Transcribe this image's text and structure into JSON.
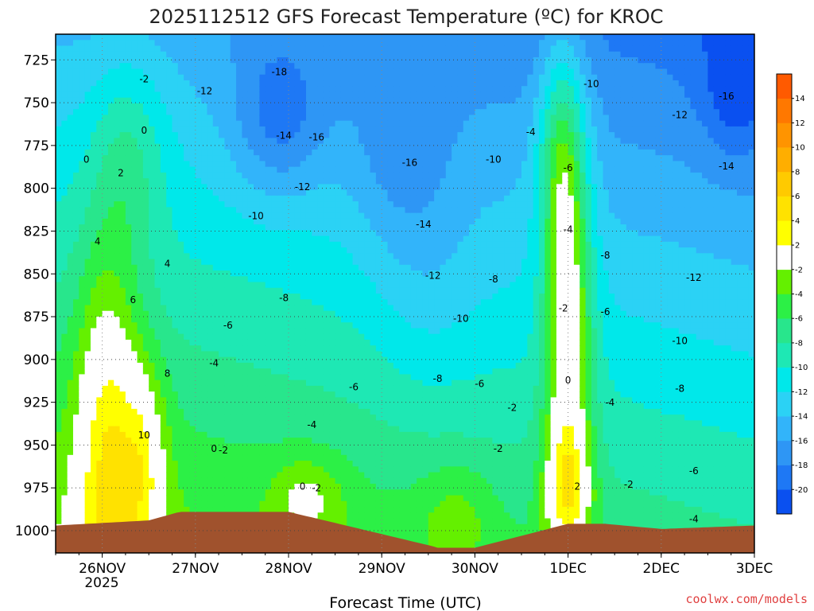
{
  "chart_data": {
    "type": "heatmap",
    "title": "2025112512 GFS Forecast Temperature (ºC) for KROC",
    "xlabel": "Forecast Time (UTC)",
    "ylabel": "",
    "x_ticks": [
      "26NOV",
      "27NOV",
      "28NOV",
      "29NOV",
      "30NOV",
      "1DEC",
      "2DEC",
      "3DEC"
    ],
    "x_tick_year": "2025",
    "xlim_days": [
      25.5,
      33.0
    ],
    "y_ticks": [
      725,
      750,
      775,
      800,
      825,
      850,
      875,
      900,
      925,
      950,
      975,
      1000
    ],
    "ylim_hpa": [
      1013,
      710
    ],
    "colorbar": {
      "levels": [
        -22,
        -20,
        -18,
        -16,
        -14,
        -12,
        -10,
        -8,
        -6,
        -4,
        -2,
        2,
        4,
        6,
        8,
        10,
        12,
        14,
        16
      ],
      "tick_labels": [
        "-20",
        "-18",
        "-16",
        "-14",
        "-12",
        "-10",
        "-8",
        "-6",
        "-4",
        "-2",
        "2",
        "4",
        "6",
        "8",
        "10",
        "12",
        "14"
      ],
      "colors": [
        "#0a50f0",
        "#1e78f5",
        "#2e96f5",
        "#32b4fa",
        "#2bd2f5",
        "#00e8ea",
        "#1ee8b4",
        "#28e68c",
        "#2cf046",
        "#64f000",
        "#ffffff",
        "#ffff00",
        "#ffe200",
        "#ffca00",
        "#ffae00",
        "#ff9400",
        "#ff7800",
        "#ff5a00"
      ]
    },
    "contour_labels": [
      {
        "t": 27.1,
        "p": 745,
        "text": "-12"
      },
      {
        "t": 27.9,
        "p": 734,
        "text": "-18"
      },
      {
        "t": 26.45,
        "p": 738,
        "text": "-2"
      },
      {
        "t": 26.45,
        "p": 768,
        "text": "0"
      },
      {
        "t": 25.83,
        "p": 785,
        "text": "0"
      },
      {
        "t": 26.2,
        "p": 793,
        "text": "2"
      },
      {
        "t": 25.95,
        "p": 833,
        "text": "4"
      },
      {
        "t": 26.7,
        "p": 846,
        "text": "4"
      },
      {
        "t": 26.33,
        "p": 867,
        "text": "6"
      },
      {
        "t": 26.7,
        "p": 910,
        "text": "8"
      },
      {
        "t": 26.45,
        "p": 946,
        "text": "10"
      },
      {
        "t": 27.95,
        "p": 771,
        "text": "-14"
      },
      {
        "t": 28.3,
        "p": 772,
        "text": "-16"
      },
      {
        "t": 29.3,
        "p": 787,
        "text": "-16"
      },
      {
        "t": 28.15,
        "p": 801,
        "text": "-12"
      },
      {
        "t": 27.65,
        "p": 818,
        "text": "-10"
      },
      {
        "t": 29.45,
        "p": 823,
        "text": "-14"
      },
      {
        "t": 29.55,
        "p": 853,
        "text": "-12"
      },
      {
        "t": 27.95,
        "p": 866,
        "text": "-8"
      },
      {
        "t": 27.35,
        "p": 882,
        "text": "-6"
      },
      {
        "t": 27.2,
        "p": 904,
        "text": "-4"
      },
      {
        "t": 28.7,
        "p": 918,
        "text": "-6"
      },
      {
        "t": 28.25,
        "p": 940,
        "text": "-4"
      },
      {
        "t": 29.6,
        "p": 913,
        "text": "-8"
      },
      {
        "t": 29.85,
        "p": 878,
        "text": "-10"
      },
      {
        "t": 30.05,
        "p": 916,
        "text": "-6"
      },
      {
        "t": 27.3,
        "p": 955,
        "text": "-2"
      },
      {
        "t": 27.2,
        "p": 954,
        "text": "0"
      },
      {
        "t": 28.15,
        "p": 976,
        "text": "0"
      },
      {
        "t": 28.3,
        "p": 977,
        "text": "-2"
      },
      {
        "t": 30.2,
        "p": 785,
        "text": "-10"
      },
      {
        "t": 30.2,
        "p": 855,
        "text": "-8"
      },
      {
        "t": 30.4,
        "p": 930,
        "text": "-2"
      },
      {
        "t": 30.25,
        "p": 954,
        "text": "-2"
      },
      {
        "t": 30.6,
        "p": 769,
        "text": "-4"
      },
      {
        "t": 31.0,
        "p": 790,
        "text": "-6"
      },
      {
        "t": 31.0,
        "p": 826,
        "text": "-4"
      },
      {
        "t": 31.4,
        "p": 841,
        "text": "-8"
      },
      {
        "t": 31.25,
        "p": 741,
        "text": "-10"
      },
      {
        "t": 30.95,
        "p": 872,
        "text": "-2"
      },
      {
        "t": 31.4,
        "p": 874,
        "text": "-6"
      },
      {
        "t": 31.0,
        "p": 914,
        "text": "0"
      },
      {
        "t": 31.1,
        "p": 976,
        "text": "2"
      },
      {
        "t": 31.45,
        "p": 927,
        "text": "-4"
      },
      {
        "t": 31.65,
        "p": 975,
        "text": "-2"
      },
      {
        "t": 32.2,
        "p": 759,
        "text": "-12"
      },
      {
        "t": 32.7,
        "p": 789,
        "text": "-14"
      },
      {
        "t": 32.7,
        "p": 748,
        "text": "-16"
      },
      {
        "t": 32.35,
        "p": 854,
        "text": "-12"
      },
      {
        "t": 32.2,
        "p": 891,
        "text": "-10"
      },
      {
        "t": 32.2,
        "p": 919,
        "text": "-8"
      },
      {
        "t": 32.35,
        "p": 967,
        "text": "-6"
      },
      {
        "t": 32.35,
        "p": 995,
        "text": "-4"
      }
    ]
  },
  "credit": "coolwx.com/models"
}
